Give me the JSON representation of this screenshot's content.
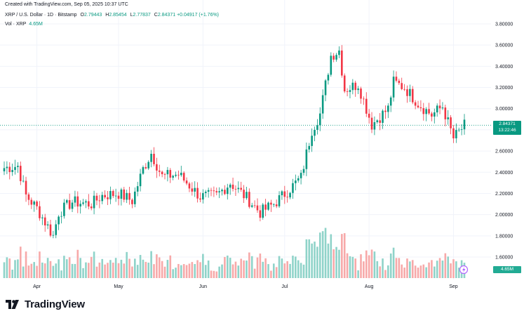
{
  "header": {
    "created": "Created with TradingView.com, Sep 05, 2025 10:37 UTC",
    "symbol": "XRP / U.S. Dollar · 1D · Bitstamp",
    "o_label": "O",
    "o_value": "2.79443",
    "h_label": "H",
    "h_value": "2.85454",
    "l_label": "L",
    "l_value": "2.77837",
    "c_label": "C",
    "c_value": "2.84371",
    "change": "+0.04917 (+1.76%)",
    "vol_label": "Vol · XRP",
    "vol_value": "4.65M"
  },
  "price_tag": {
    "price": "2.84371",
    "countdown": "13:22:46"
  },
  "volume_tag": "4.65M",
  "logo_text": "TradingView",
  "colors": {
    "up": "#089981",
    "down": "#f23645",
    "vol_up": "#8fd3c9",
    "vol_down": "#f7a9a9"
  },
  "chart_data": {
    "type": "candlestick",
    "title": "XRP / U.S. Dollar · 1D · Bitstamp",
    "y_ticks": [
      "3.80000",
      "3.60000",
      "3.40000",
      "3.20000",
      "3.00000",
      "2.80000",
      "2.60000",
      "2.40000",
      "2.20000",
      "2.00000",
      "1.80000",
      "1.60000"
    ],
    "ylim": [
      1.6,
      3.8
    ],
    "x_ticks": [
      "Apr",
      "May",
      "Jun",
      "Jul",
      "Aug",
      "Sep"
    ],
    "grid": true,
    "current_price": 2.84371,
    "volume_series_last": "4.65M",
    "close_series": [
      {
        "date": "2025-03-20",
        "close": 2.44
      },
      {
        "date": "2025-03-25",
        "close": 2.46
      },
      {
        "date": "2025-03-28",
        "close": 2.18
      },
      {
        "date": "2025-04-01",
        "close": 2.06
      },
      {
        "date": "2025-04-07",
        "close": 1.8
      },
      {
        "date": "2025-04-09",
        "close": 2.02
      },
      {
        "date": "2025-04-14",
        "close": 2.12
      },
      {
        "date": "2025-04-21",
        "close": 2.1
      },
      {
        "date": "2025-04-25",
        "close": 2.18
      },
      {
        "date": "2025-05-01",
        "close": 2.2
      },
      {
        "date": "2025-05-06",
        "close": 2.13
      },
      {
        "date": "2025-05-10",
        "close": 2.43
      },
      {
        "date": "2025-05-13",
        "close": 2.58
      },
      {
        "date": "2025-05-17",
        "close": 2.36
      },
      {
        "date": "2025-05-23",
        "close": 2.38
      },
      {
        "date": "2025-05-31",
        "close": 2.17
      },
      {
        "date": "2025-06-06",
        "close": 2.18
      },
      {
        "date": "2025-06-11",
        "close": 2.3
      },
      {
        "date": "2025-06-17",
        "close": 2.16
      },
      {
        "date": "2025-06-22",
        "close": 2.02
      },
      {
        "date": "2025-06-27",
        "close": 2.1
      },
      {
        "date": "2025-07-02",
        "close": 2.22
      },
      {
        "date": "2025-07-07",
        "close": 2.35
      },
      {
        "date": "2025-07-11",
        "close": 2.8
      },
      {
        "date": "2025-07-14",
        "close": 2.95
      },
      {
        "date": "2025-07-18",
        "close": 3.5
      },
      {
        "date": "2025-07-21",
        "close": 3.55
      },
      {
        "date": "2025-07-23",
        "close": 3.18
      },
      {
        "date": "2025-07-28",
        "close": 3.23
      },
      {
        "date": "2025-08-02",
        "close": 2.85
      },
      {
        "date": "2025-08-08",
        "close": 3.0
      },
      {
        "date": "2025-08-10",
        "close": 3.25
      },
      {
        "date": "2025-08-14",
        "close": 3.2
      },
      {
        "date": "2025-08-19",
        "close": 3.05
      },
      {
        "date": "2025-08-24",
        "close": 2.94
      },
      {
        "date": "2025-08-28",
        "close": 3.02
      },
      {
        "date": "2025-09-01",
        "close": 2.72
      },
      {
        "date": "2025-09-05",
        "close": 2.84
      }
    ]
  }
}
